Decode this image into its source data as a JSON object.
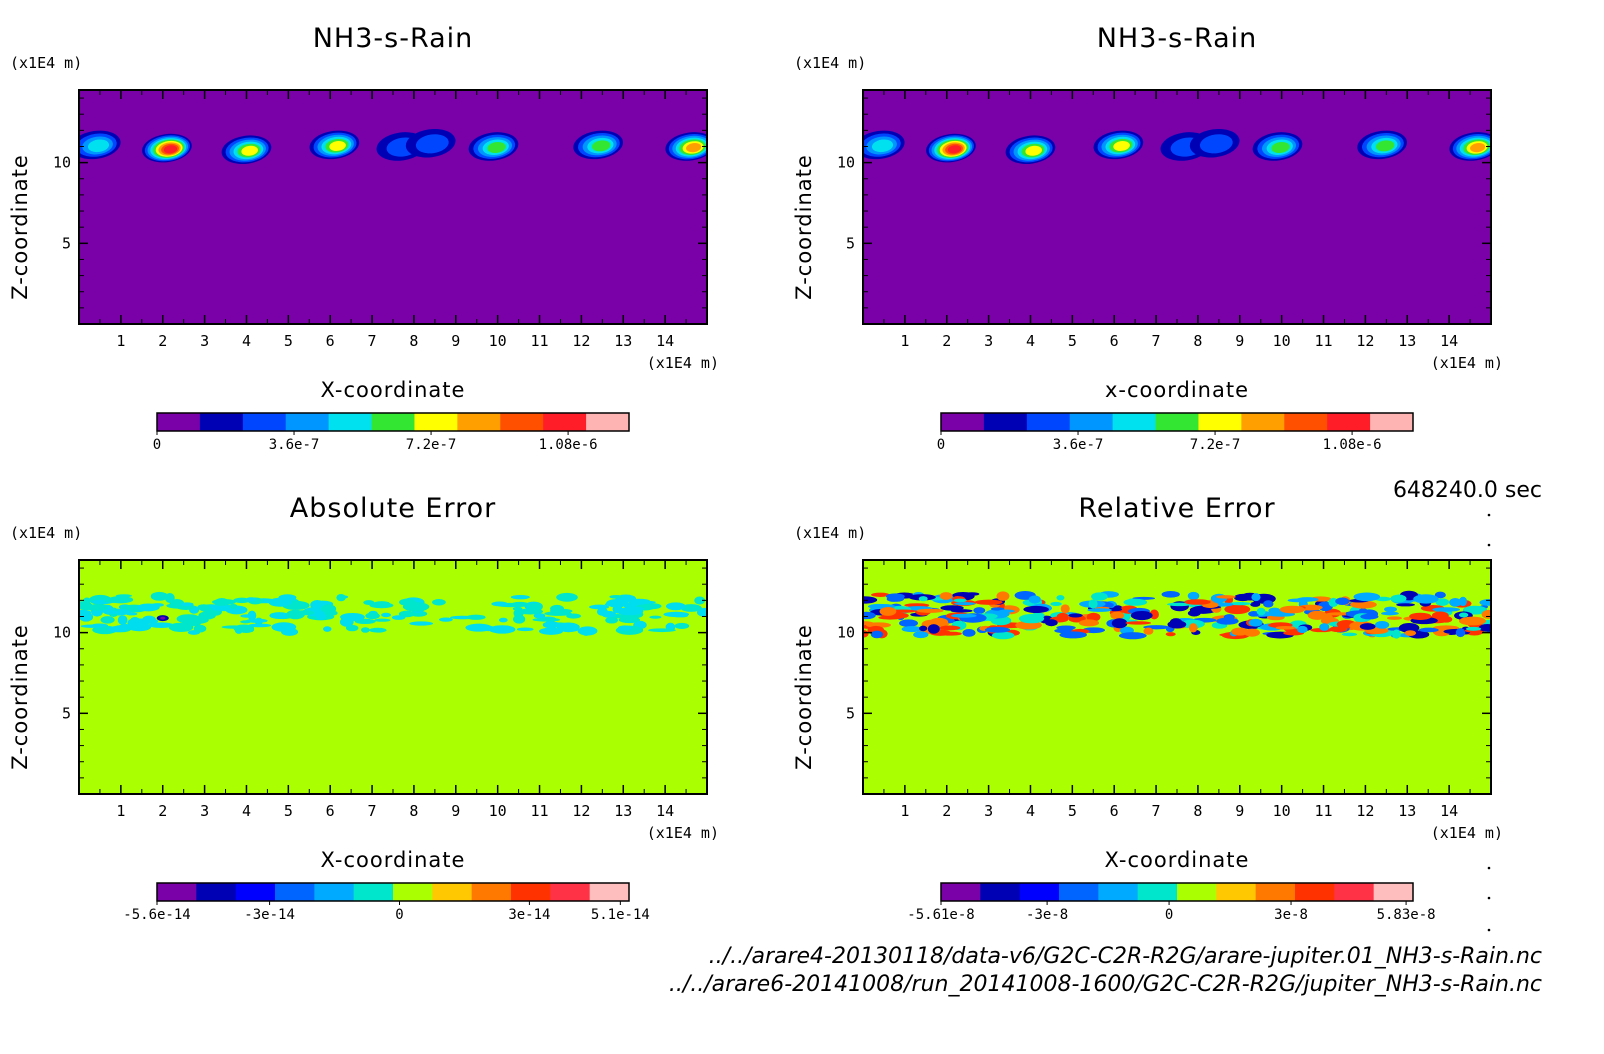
{
  "chart_data": [
    {
      "type": "heatmap",
      "title": "NH3-s-Rain",
      "x_unit": "(x1E4 m)",
      "y_unit": "(x1E4 m)",
      "xlabel": "X-coordinate",
      "ylabel": "Z-coordinate",
      "xlim": [
        0,
        15
      ],
      "ylim": [
        0,
        14.5
      ],
      "x_ticks": [
        1,
        2,
        3,
        4,
        5,
        6,
        7,
        8,
        9,
        10,
        11,
        12,
        13,
        14
      ],
      "y_ticks": [
        5,
        10
      ],
      "background_color": "#7a00a8",
      "features": [
        {
          "x": 0.4,
          "z": 11.1,
          "peak": 0.4
        },
        {
          "x": 2.1,
          "z": 10.9,
          "peak": 1.0
        },
        {
          "x": 4.0,
          "z": 10.8,
          "peak": 0.7
        },
        {
          "x": 6.1,
          "z": 11.1,
          "peak": 0.7
        },
        {
          "x": 7.7,
          "z": 11.0,
          "peak": 0.25
        },
        {
          "x": 8.4,
          "z": 11.2,
          "peak": 0.2
        },
        {
          "x": 9.9,
          "z": 11.0,
          "peak": 0.6
        },
        {
          "x": 12.4,
          "z": 11.1,
          "peak": 0.6
        },
        {
          "x": 14.6,
          "z": 11.0,
          "peak": 0.75
        }
      ],
      "colorbar": {
        "colors": [
          "#7a00a8",
          "#0000b4",
          "#0046ff",
          "#0096ff",
          "#00e1f0",
          "#32e632",
          "#ffff00",
          "#ffa000",
          "#ff5000",
          "#ff1e28",
          "#ffb4b4"
        ],
        "tick_labels": [
          "0",
          "3.6e-7",
          "7.2e-7",
          "1.08e-6"
        ],
        "tick_values": [
          0,
          3.6e-07,
          7.2e-07,
          1.08e-06
        ],
        "range": [
          0,
          1.24e-06
        ]
      }
    },
    {
      "type": "heatmap",
      "title": "NH3-s-Rain",
      "x_unit": "(x1E4 m)",
      "y_unit": "(x1E4 m)",
      "xlabel": "x-coordinate",
      "ylabel": "Z-coordinate",
      "xlim": [
        0,
        15
      ],
      "ylim": [
        0,
        14.5
      ],
      "x_ticks": [
        1,
        2,
        3,
        4,
        5,
        6,
        7,
        8,
        9,
        10,
        11,
        12,
        13,
        14
      ],
      "y_ticks": [
        5,
        10
      ],
      "background_color": "#7a00a8",
      "features": [
        {
          "x": 0.4,
          "z": 11.1,
          "peak": 0.4
        },
        {
          "x": 2.1,
          "z": 10.9,
          "peak": 1.0
        },
        {
          "x": 4.0,
          "z": 10.8,
          "peak": 0.7
        },
        {
          "x": 6.1,
          "z": 11.1,
          "peak": 0.7
        },
        {
          "x": 7.7,
          "z": 11.0,
          "peak": 0.25
        },
        {
          "x": 8.4,
          "z": 11.2,
          "peak": 0.2
        },
        {
          "x": 9.9,
          "z": 11.0,
          "peak": 0.6
        },
        {
          "x": 12.4,
          "z": 11.1,
          "peak": 0.6
        },
        {
          "x": 14.6,
          "z": 11.0,
          "peak": 0.75
        }
      ],
      "colorbar": {
        "colors": [
          "#7a00a8",
          "#0000b4",
          "#0046ff",
          "#0096ff",
          "#00e1f0",
          "#32e632",
          "#ffff00",
          "#ffa000",
          "#ff5000",
          "#ff1e28",
          "#ffb4b4"
        ],
        "tick_labels": [
          "0",
          "3.6e-7",
          "7.2e-7",
          "1.08e-6"
        ],
        "tick_values": [
          0,
          3.6e-07,
          7.2e-07,
          1.08e-06
        ],
        "range": [
          0,
          1.24e-06
        ]
      }
    },
    {
      "type": "heatmap",
      "title": "Absolute Error",
      "x_unit": "(x1E4 m)",
      "y_unit": "(x1E4 m)",
      "xlabel": "X-coordinate",
      "ylabel": "Z-coordinate",
      "xlim": [
        0,
        15
      ],
      "ylim": [
        0,
        14.5
      ],
      "x_ticks": [
        1,
        2,
        3,
        4,
        5,
        6,
        7,
        8,
        9,
        10,
        11,
        12,
        13,
        14
      ],
      "y_ticks": [
        5,
        10
      ],
      "background_color": "#aaff00",
      "band_z": [
        10.0,
        12.3
      ],
      "band_colors": [
        "#00ddee",
        "#00e6cc"
      ],
      "colorbar": {
        "colors": [
          "#7a00a8",
          "#0000b4",
          "#0000ff",
          "#0064ff",
          "#00aaff",
          "#00e6cc",
          "#aaff00",
          "#ffc800",
          "#ff7800",
          "#ff3200",
          "#ff3246",
          "#ffbebe"
        ],
        "tick_labels": [
          "-5.6e-14",
          "-3e-14",
          "0",
          "3e-14",
          "5.1e-14"
        ],
        "tick_values": [
          -5.6e-14,
          -3e-14,
          0,
          3e-14,
          5.1e-14
        ],
        "range": [
          -5.6e-14,
          5.3e-14
        ]
      }
    },
    {
      "type": "heatmap",
      "title": "Relative Error",
      "x_unit": "(x1E4 m)",
      "y_unit": "(x1E4 m)",
      "xlabel": "X-coordinate",
      "ylabel": "Z-coordinate",
      "xlim": [
        0,
        15
      ],
      "ylim": [
        0,
        14.5
      ],
      "x_ticks": [
        1,
        2,
        3,
        4,
        5,
        6,
        7,
        8,
        9,
        10,
        11,
        12,
        13,
        14
      ],
      "y_ticks": [
        5,
        10
      ],
      "background_color": "#aaff00",
      "band_z": [
        9.8,
        12.4
      ],
      "band_colors": [
        "#0064ff",
        "#00aaff",
        "#ff3200",
        "#ff7800",
        "#0000b4",
        "#00e6cc"
      ],
      "colorbar": {
        "colors": [
          "#7a00a8",
          "#0000b4",
          "#0000ff",
          "#0064ff",
          "#00aaff",
          "#00e6cc",
          "#aaff00",
          "#ffc800",
          "#ff7800",
          "#ff3200",
          "#ff3246",
          "#ffbebe"
        ],
        "tick_labels": [
          "-5.61e-8",
          "-3e-8",
          "0",
          "3e-8",
          "5.83e-8"
        ],
        "tick_values": [
          -5.61e-08,
          -3e-08,
          0,
          3e-08,
          5.83e-08
        ],
        "range": [
          -5.61e-08,
          6e-08
        ]
      }
    }
  ],
  "time_label": "648240.0 sec",
  "file_paths": [
    "../../arare4-20130118/data-v6/G2C-C2R-R2G/arare-jupiter.01_NH3-s-Rain.nc",
    "../../arare6-20141008/run_20141008-1600/G2C-C2R-R2G/jupiter_NH3-s-Rain.nc"
  ]
}
